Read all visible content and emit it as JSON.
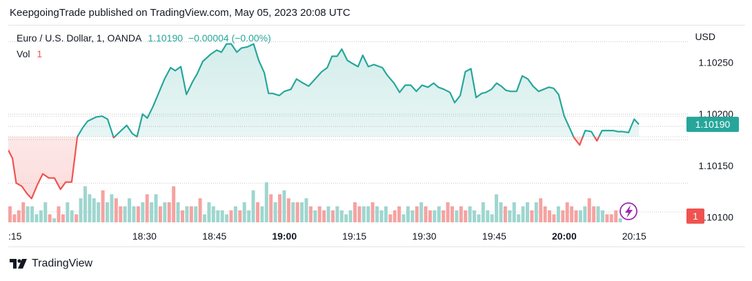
{
  "header": {
    "published": "KeepgoingTrade published on TradingView.com, May 05, 2023 20:08 UTC"
  },
  "legend": {
    "symbol": "Euro / U.S. Dollar, 1, OANDA",
    "price": "1.10190",
    "change": "−0.00004 (−0.00%)",
    "vol_label": "Vol",
    "vol_value": "1"
  },
  "axis": {
    "currency": "USD",
    "price_ticks": [
      "1.10250",
      "1.10200",
      "1.10150",
      "1.10100"
    ],
    "time_ticks": [
      ":15",
      "18:30",
      "18:45",
      "19:00",
      "19:15",
      "19:30",
      "19:45",
      "20:00",
      "20:15"
    ],
    "bold_ticks": [
      "19:00",
      "20:00"
    ],
    "last_price": "1.10190",
    "last_volume": "1"
  },
  "footer": {
    "brand": "TradingView"
  },
  "colors": {
    "up": "#26a69a",
    "down": "#ef5350",
    "vol_up": "#9fd6cf",
    "vol_down": "#f5a3a1",
    "flash": "#9c27b0"
  },
  "chart_data": {
    "type": "area",
    "baseline": 1.10178,
    "ylim": [
      1.10093,
      1.10272
    ],
    "x_start_min": 1083,
    "x_end_min": 1226,
    "price": [
      [
        1080.8,
        1.10165
      ],
      [
        1081.7,
        1.10157
      ],
      [
        1082.5,
        1.10133
      ],
      [
        1083.7,
        1.1013
      ],
      [
        1084.8,
        1.10123
      ],
      [
        1085.8,
        1.10118
      ],
      [
        1087,
        1.10131
      ],
      [
        1088.2,
        1.10142
      ],
      [
        1089.5,
        1.10138
      ],
      [
        1090.7,
        1.10138
      ],
      [
        1092,
        1.10127
      ],
      [
        1093.1,
        1.10134
      ],
      [
        1094.4,
        1.10134
      ],
      [
        1095.6,
        1.10178
      ],
      [
        1096.8,
        1.10187
      ],
      [
        1097.8,
        1.10193
      ],
      [
        1099.6,
        1.10197
      ],
      [
        1100.9,
        1.10198
      ],
      [
        1102.1,
        1.10195
      ],
      [
        1103.4,
        1.10177
      ],
      [
        1105,
        1.10184
      ],
      [
        1106.2,
        1.10189
      ],
      [
        1107.4,
        1.10181
      ],
      [
        1108.4,
        1.10178
      ],
      [
        1109.6,
        1.102
      ],
      [
        1110.6,
        1.10196
      ],
      [
        1111.8,
        1.10207
      ],
      [
        1113.1,
        1.10221
      ],
      [
        1114.3,
        1.10234
      ],
      [
        1115.6,
        1.10245
      ],
      [
        1116.6,
        1.10242
      ],
      [
        1117.8,
        1.10246
      ],
      [
        1119,
        1.10219
      ],
      [
        1120.4,
        1.10232
      ],
      [
        1121.3,
        1.10239
      ],
      [
        1122.5,
        1.10251
      ],
      [
        1124.2,
        1.10258
      ],
      [
        1125.5,
        1.10262
      ],
      [
        1126.5,
        1.1026
      ],
      [
        1127.6,
        1.10268
      ],
      [
        1128.6,
        1.10268
      ],
      [
        1129.8,
        1.1026
      ],
      [
        1130.8,
        1.10264
      ],
      [
        1132,
        1.10265
      ],
      [
        1133.4,
        1.10268
      ],
      [
        1134.5,
        1.10252
      ],
      [
        1135.7,
        1.1024
      ],
      [
        1136.6,
        1.1022
      ],
      [
        1137.5,
        1.1022
      ],
      [
        1138.9,
        1.10218
      ],
      [
        1140,
        1.10222
      ],
      [
        1141.4,
        1.10224
      ],
      [
        1142.6,
        1.10234
      ],
      [
        1144,
        1.1023
      ],
      [
        1145.2,
        1.10227
      ],
      [
        1146.4,
        1.10233
      ],
      [
        1148,
        1.10241
      ],
      [
        1149.2,
        1.10245
      ],
      [
        1150.2,
        1.10256
      ],
      [
        1151.3,
        1.10256
      ],
      [
        1152.3,
        1.10263
      ],
      [
        1153.5,
        1.10252
      ],
      [
        1154.6,
        1.10249
      ],
      [
        1155.8,
        1.10246
      ],
      [
        1156.8,
        1.10257
      ],
      [
        1158,
        1.10246
      ],
      [
        1159.2,
        1.10248
      ],
      [
        1161,
        1.10245
      ],
      [
        1162,
        1.10238
      ],
      [
        1163.5,
        1.1023
      ],
      [
        1164.7,
        1.10221
      ],
      [
        1165.9,
        1.10228
      ],
      [
        1167.1,
        1.10228
      ],
      [
        1168.3,
        1.10222
      ],
      [
        1169.5,
        1.10228
      ],
      [
        1170.8,
        1.10226
      ],
      [
        1172,
        1.1023
      ],
      [
        1173,
        1.10226
      ],
      [
        1174.2,
        1.10224
      ],
      [
        1175.5,
        1.10221
      ],
      [
        1176.5,
        1.10211
      ],
      [
        1177.7,
        1.10218
      ],
      [
        1178.8,
        1.10241
      ],
      [
        1180,
        1.10244
      ],
      [
        1181.1,
        1.10216
      ],
      [
        1182.3,
        1.1022
      ],
      [
        1183.2,
        1.10221
      ],
      [
        1184.4,
        1.10224
      ],
      [
        1185.5,
        1.1023
      ],
      [
        1186.5,
        1.10227
      ],
      [
        1187.5,
        1.10223
      ],
      [
        1188.5,
        1.10222
      ],
      [
        1189.8,
        1.10222
      ],
      [
        1191,
        1.10237
      ],
      [
        1192.2,
        1.10234
      ],
      [
        1193.3,
        1.10227
      ],
      [
        1194.5,
        1.10222
      ],
      [
        1195.6,
        1.10224
      ],
      [
        1196.7,
        1.10226
      ],
      [
        1197.7,
        1.10225
      ],
      [
        1198.8,
        1.10219
      ],
      [
        1200,
        1.10198
      ],
      [
        1201,
        1.10188
      ],
      [
        1202.1,
        1.10177
      ],
      [
        1203.3,
        1.1017
      ],
      [
        1204.5,
        1.10184
      ],
      [
        1205.8,
        1.10183
      ],
      [
        1207,
        1.10174
      ],
      [
        1208.1,
        1.10184
      ],
      [
        1209.3,
        1.10184
      ],
      [
        1210.5,
        1.10184
      ],
      [
        1211.5,
        1.10183
      ],
      [
        1212.5,
        1.10183
      ],
      [
        1213.8,
        1.10182
      ],
      [
        1215,
        1.10195
      ],
      [
        1216,
        1.1019
      ]
    ],
    "volume_max": 10,
    "volume": [
      [
        4,
        "d"
      ],
      [
        2,
        "d"
      ],
      [
        3,
        "d"
      ],
      [
        5,
        "d"
      ],
      [
        4,
        "u"
      ],
      [
        4,
        "u"
      ],
      [
        2,
        "u"
      ],
      [
        3,
        "u"
      ],
      [
        5,
        "u"
      ],
      [
        2,
        "d"
      ],
      [
        1,
        "u"
      ],
      [
        4,
        "d"
      ],
      [
        2,
        "d"
      ],
      [
        5,
        "u"
      ],
      [
        3,
        "u"
      ],
      [
        2,
        "d"
      ],
      [
        6,
        "u"
      ],
      [
        9,
        "u"
      ],
      [
        7,
        "u"
      ],
      [
        6,
        "u"
      ],
      [
        5,
        "u"
      ],
      [
        8,
        "d"
      ],
      [
        5,
        "u"
      ],
      [
        7,
        "u"
      ],
      [
        6,
        "d"
      ],
      [
        4,
        "d"
      ],
      [
        4,
        "u"
      ],
      [
        6,
        "u"
      ],
      [
        4,
        "u"
      ],
      [
        4,
        "d"
      ],
      [
        5,
        "u"
      ],
      [
        7,
        "d"
      ],
      [
        5,
        "u"
      ],
      [
        7,
        "u"
      ],
      [
        4,
        "d"
      ],
      [
        5,
        "u"
      ],
      [
        5,
        "d"
      ],
      [
        9,
        "d"
      ],
      [
        5,
        "u"
      ],
      [
        3,
        "d"
      ],
      [
        4,
        "u"
      ],
      [
        4,
        "d"
      ],
      [
        4,
        "u"
      ],
      [
        6,
        "d"
      ],
      [
        2,
        "u"
      ],
      [
        5,
        "u"
      ],
      [
        4,
        "u"
      ],
      [
        3,
        "u"
      ],
      [
        3,
        "u"
      ],
      [
        2,
        "u"
      ],
      [
        3,
        "d"
      ],
      [
        4,
        "u"
      ],
      [
        3,
        "d"
      ],
      [
        5,
        "u"
      ],
      [
        3,
        "u"
      ],
      [
        8,
        "u"
      ],
      [
        5,
        "d"
      ],
      [
        4,
        "u"
      ],
      [
        10,
        "u"
      ],
      [
        7,
        "d"
      ],
      [
        5,
        "u"
      ],
      [
        7,
        "d"
      ],
      [
        8,
        "u"
      ],
      [
        6,
        "d"
      ],
      [
        5,
        "u"
      ],
      [
        5,
        "d"
      ],
      [
        5,
        "u"
      ],
      [
        6,
        "u"
      ],
      [
        4,
        "d"
      ],
      [
        3,
        "u"
      ],
      [
        4,
        "d"
      ],
      [
        3,
        "d"
      ],
      [
        4,
        "u"
      ],
      [
        3,
        "d"
      ],
      [
        4,
        "u"
      ],
      [
        3,
        "u"
      ],
      [
        2,
        "u"
      ],
      [
        3,
        "u"
      ],
      [
        5,
        "d"
      ],
      [
        4,
        "d"
      ],
      [
        4,
        "u"
      ],
      [
        4,
        "u"
      ],
      [
        5,
        "d"
      ],
      [
        4,
        "u"
      ],
      [
        3,
        "u"
      ],
      [
        4,
        "u"
      ],
      [
        2,
        "d"
      ],
      [
        3,
        "d"
      ],
      [
        4,
        "d"
      ],
      [
        2,
        "u"
      ],
      [
        4,
        "u"
      ],
      [
        3,
        "u"
      ],
      [
        4,
        "d"
      ],
      [
        5,
        "u"
      ],
      [
        4,
        "d"
      ],
      [
        3,
        "d"
      ],
      [
        3,
        "u"
      ],
      [
        4,
        "u"
      ],
      [
        3,
        "d"
      ],
      [
        5,
        "d"
      ],
      [
        4,
        "d"
      ],
      [
        3,
        "u"
      ],
      [
        4,
        "d"
      ],
      [
        3,
        "d"
      ],
      [
        4,
        "u"
      ],
      [
        3,
        "u"
      ],
      [
        2,
        "u"
      ],
      [
        5,
        "u"
      ],
      [
        3,
        "u"
      ],
      [
        2,
        "u"
      ],
      [
        7,
        "u"
      ],
      [
        5,
        "u"
      ],
      [
        4,
        "d"
      ],
      [
        3,
        "u"
      ],
      [
        5,
        "u"
      ],
      [
        2,
        "u"
      ],
      [
        4,
        "u"
      ],
      [
        5,
        "u"
      ],
      [
        3,
        "d"
      ],
      [
        5,
        "u"
      ],
      [
        6,
        "d"
      ],
      [
        4,
        "d"
      ],
      [
        3,
        "d"
      ],
      [
        2,
        "d"
      ],
      [
        4,
        "u"
      ],
      [
        3,
        "d"
      ],
      [
        5,
        "d"
      ],
      [
        4,
        "d"
      ],
      [
        3,
        "d"
      ],
      [
        3,
        "u"
      ],
      [
        4,
        "u"
      ],
      [
        6,
        "d"
      ],
      [
        4,
        "d"
      ],
      [
        4,
        "u"
      ],
      [
        3,
        "u"
      ],
      [
        2,
        "d"
      ],
      [
        2,
        "d"
      ],
      [
        3,
        "d"
      ],
      [
        1,
        "u"
      ]
    ],
    "time_tick_minutes": [
      1095,
      1110,
      1125,
      1140,
      1155,
      1170,
      1185,
      1200,
      1215
    ],
    "price_tick_values": [
      1.1025,
      1.102,
      1.1015,
      1.101
    ],
    "ref_lines": [
      1.1027,
      1.102,
      1.10198,
      1.10188,
      1.10178,
      1.10175,
      1.10133,
      1.10105
    ]
  }
}
